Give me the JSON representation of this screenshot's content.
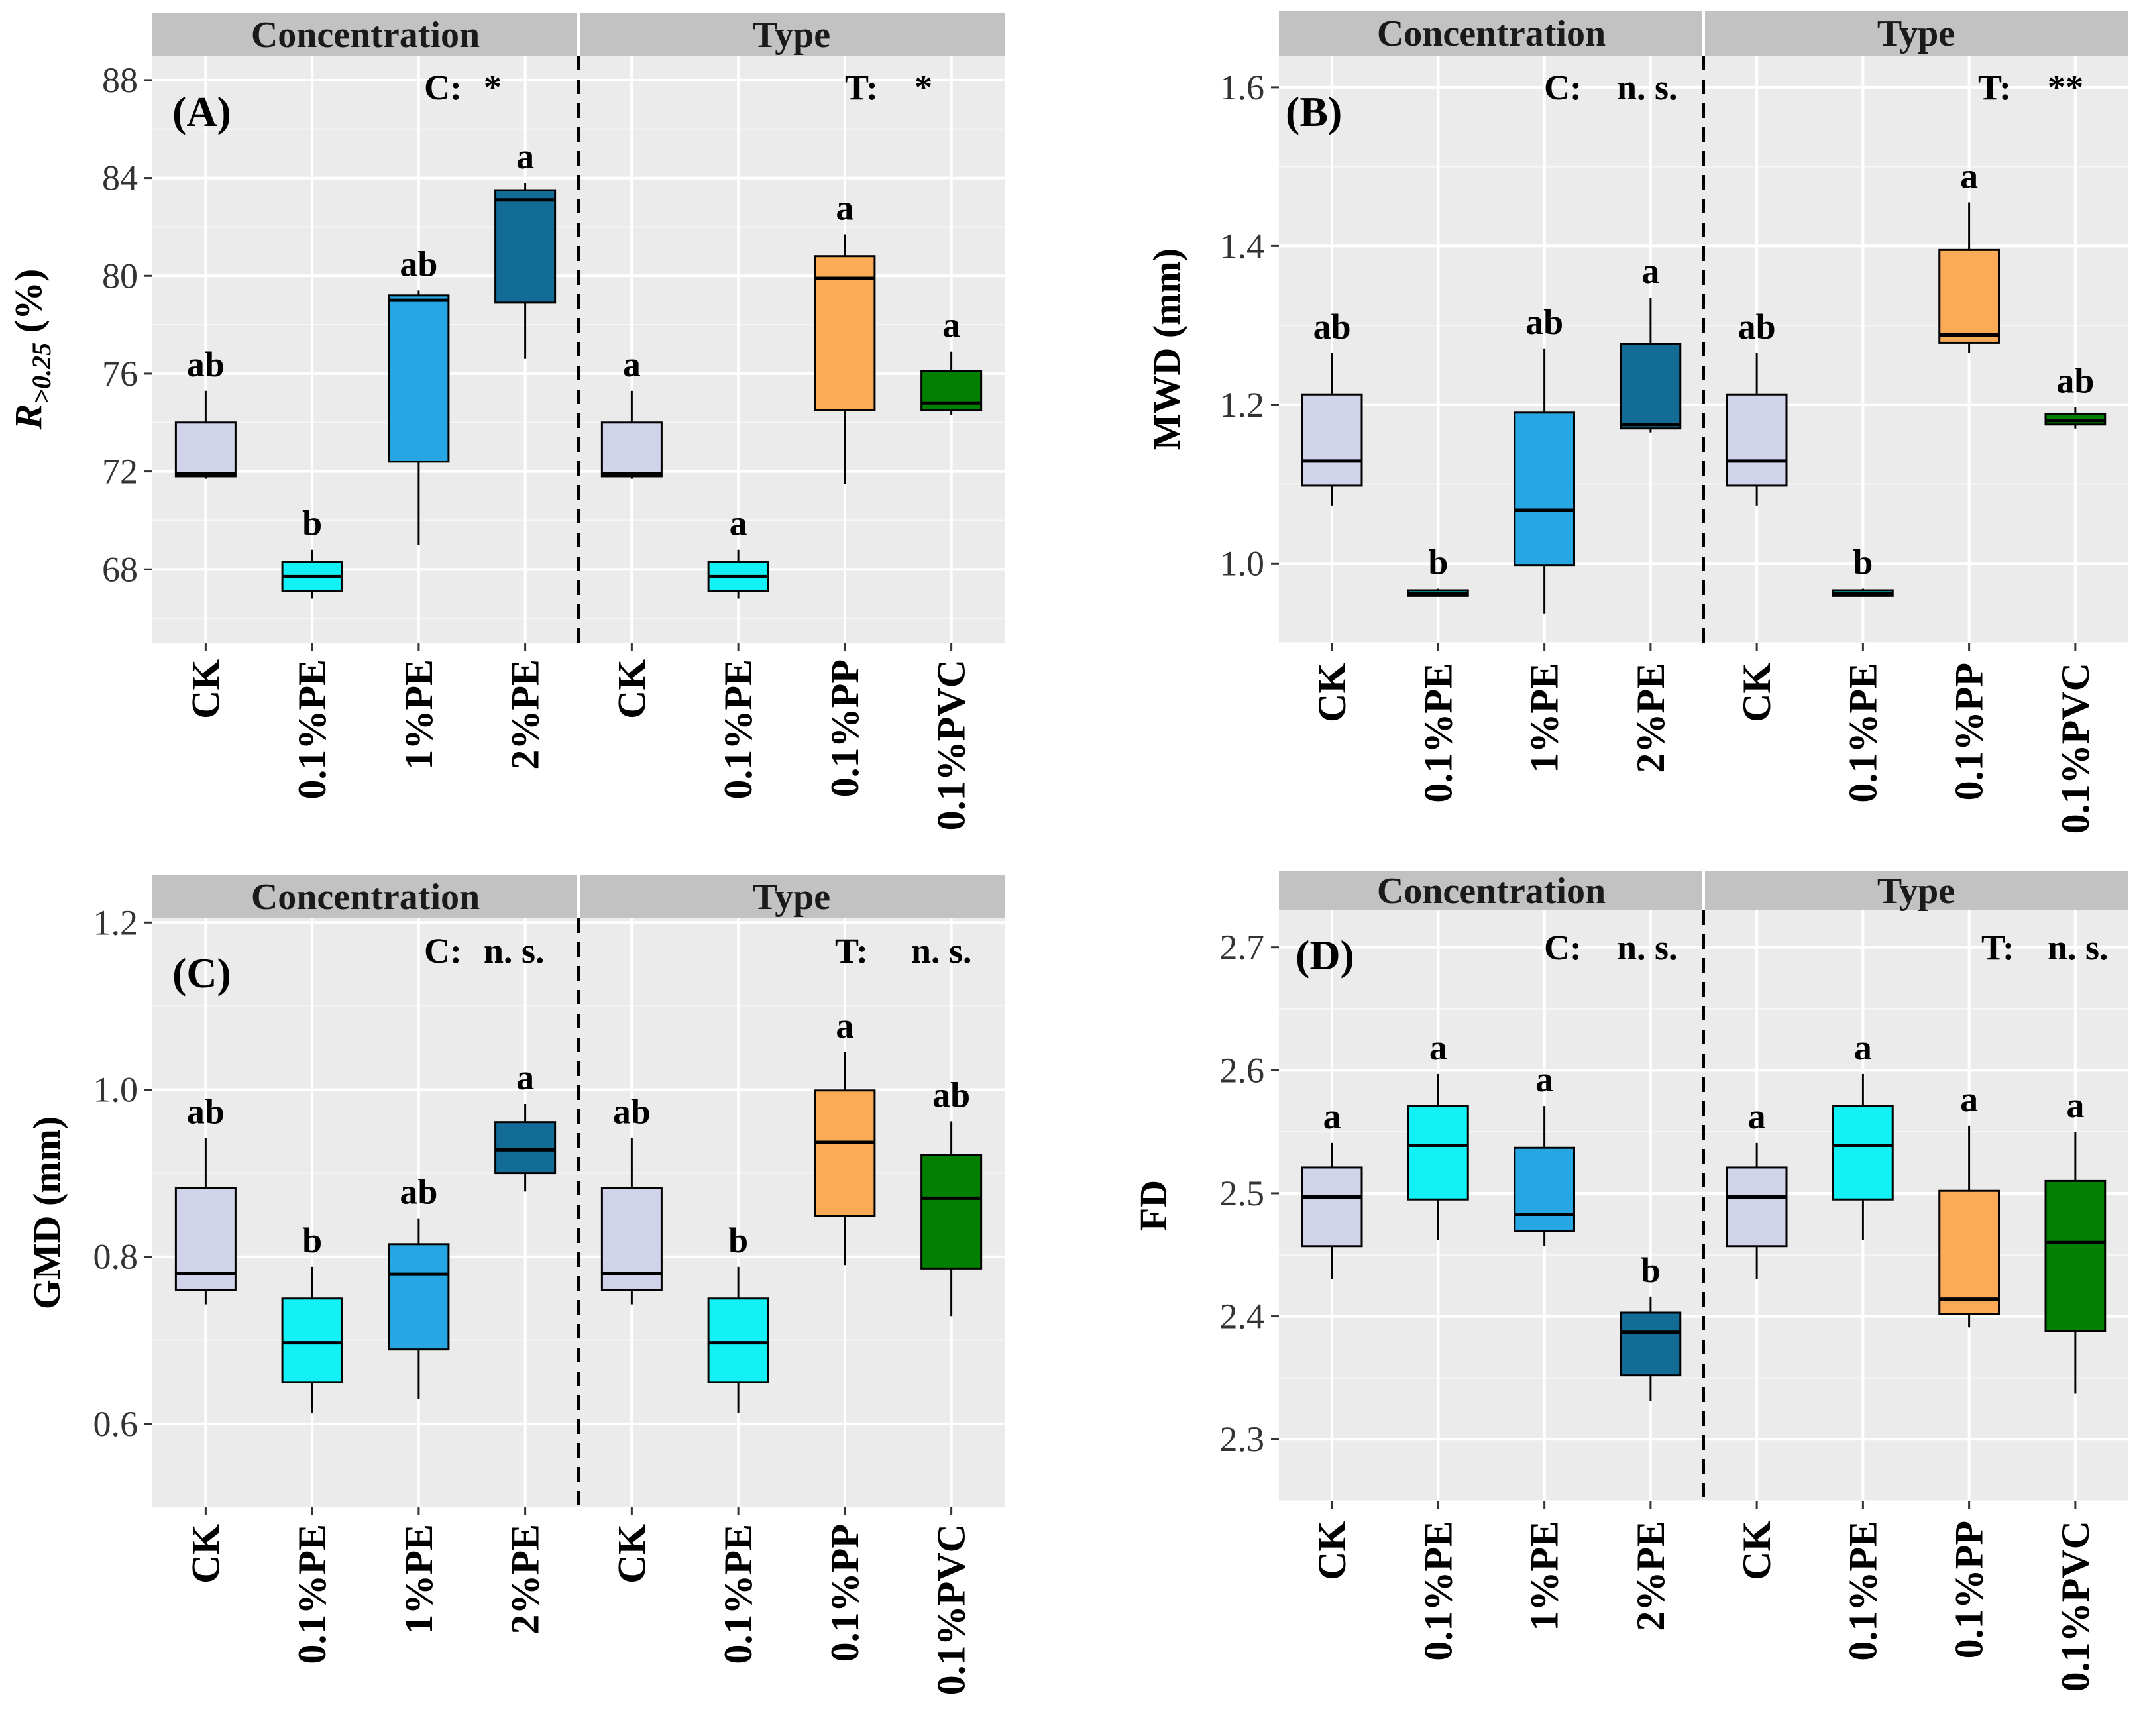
{
  "chart_data": [
    {
      "type": "box",
      "panel_label": "(A)",
      "ylabel_main": "R",
      "ylabel_sub": ">0.25",
      "ylabel_unit": " (%)",
      "ylim": [
        65,
        89
      ],
      "yticks": [
        "68",
        "72",
        "76",
        "80",
        "84",
        "88"
      ],
      "yticks_values": [
        68,
        72,
        76,
        80,
        84,
        88
      ],
      "facets": [
        {
          "name": "Concentration",
          "sig_label": "C:",
          "sig_value": "*"
        },
        {
          "name": "Type",
          "sig_label": "T:",
          "sig_value": "*"
        }
      ],
      "boxes": [
        {
          "facet": 0,
          "category": "CK",
          "color": "#d0d3ea",
          "min": 71.7,
          "q1": 71.8,
          "median": 71.9,
          "q3": 74.0,
          "max": 75.3,
          "letter": "ab"
        },
        {
          "facet": 0,
          "category": "0.1%PE",
          "color": "#12f2f6",
          "min": 66.8,
          "q1": 67.1,
          "median": 67.7,
          "q3": 68.3,
          "max": 68.8,
          "letter": "b"
        },
        {
          "facet": 0,
          "category": "1%PE",
          "color": "#26a6e2",
          "min": 69.0,
          "q1": 72.4,
          "median": 79.0,
          "q3": 79.2,
          "max": 79.4,
          "letter": "ab"
        },
        {
          "facet": 0,
          "category": "2%PE",
          "color": "#136c96",
          "min": 76.6,
          "q1": 78.9,
          "median": 83.1,
          "q3": 83.5,
          "max": 83.8,
          "letter": "a"
        },
        {
          "facet": 1,
          "category": "CK",
          "color": "#d0d3ea",
          "min": 71.7,
          "q1": 71.8,
          "median": 71.9,
          "q3": 74.0,
          "max": 75.3,
          "letter": "a"
        },
        {
          "facet": 1,
          "category": "0.1%PE",
          "color": "#12f2f6",
          "min": 66.8,
          "q1": 67.1,
          "median": 67.7,
          "q3": 68.3,
          "max": 68.8,
          "letter": "a"
        },
        {
          "facet": 1,
          "category": "0.1%PP",
          "color": "#fbab55",
          "min": 71.5,
          "q1": 74.5,
          "median": 79.9,
          "q3": 80.8,
          "max": 81.7,
          "letter": "a"
        },
        {
          "facet": 1,
          "category": "0.1%PVC",
          "color": "#007f00",
          "min": 74.3,
          "q1": 74.5,
          "median": 74.8,
          "q3": 76.1,
          "max": 76.9,
          "letter": "a"
        }
      ]
    },
    {
      "type": "box",
      "panel_label": "(B)",
      "ylabel_main": "MWD (mm)",
      "ylim": [
        0.9,
        1.64
      ],
      "yticks": [
        "1.0",
        "1.2",
        "1.4",
        "1.6"
      ],
      "yticks_values": [
        1.0,
        1.2,
        1.4,
        1.6
      ],
      "facets": [
        {
          "name": "Concentration",
          "sig_label": "C:",
          "sig_value": "n. s."
        },
        {
          "name": "Type",
          "sig_label": "T:",
          "sig_value": "**"
        }
      ],
      "boxes": [
        {
          "facet": 0,
          "category": "CK",
          "color": "#d0d3ea",
          "min": 1.073,
          "q1": 1.098,
          "median": 1.129,
          "q3": 1.213,
          "max": 1.265,
          "letter": "ab"
        },
        {
          "facet": 0,
          "category": "0.1%PE",
          "color": "#12f2f6",
          "min": 0.958,
          "q1": 0.959,
          "median": 0.962,
          "q3": 0.966,
          "max": 0.968,
          "letter": "b"
        },
        {
          "facet": 0,
          "category": "1%PE",
          "color": "#26a6e2",
          "min": 0.937,
          "q1": 0.998,
          "median": 1.067,
          "q3": 1.19,
          "max": 1.271,
          "letter": "ab"
        },
        {
          "facet": 0,
          "category": "2%PE",
          "color": "#136c96",
          "min": 1.165,
          "q1": 1.17,
          "median": 1.175,
          "q3": 1.277,
          "max": 1.335,
          "letter": "a"
        },
        {
          "facet": 1,
          "category": "CK",
          "color": "#d0d3ea",
          "min": 1.073,
          "q1": 1.098,
          "median": 1.129,
          "q3": 1.213,
          "max": 1.265,
          "letter": "ab"
        },
        {
          "facet": 1,
          "category": "0.1%PE",
          "color": "#12f2f6",
          "min": 0.958,
          "q1": 0.959,
          "median": 0.962,
          "q3": 0.966,
          "max": 0.968,
          "letter": "b"
        },
        {
          "facet": 1,
          "category": "0.1%PP",
          "color": "#fbab55",
          "min": 1.265,
          "q1": 1.278,
          "median": 1.288,
          "q3": 1.395,
          "max": 1.455,
          "letter": "a"
        },
        {
          "facet": 1,
          "category": "0.1%PVC",
          "color": "#007f00",
          "min": 1.17,
          "q1": 1.175,
          "median": 1.18,
          "q3": 1.188,
          "max": 1.197,
          "letter": "ab"
        }
      ]
    },
    {
      "type": "box",
      "panel_label": "(C)",
      "ylabel_main": "GMD (mm)",
      "ylim": [
        0.5,
        1.205
      ],
      "yticks": [
        "0.6",
        "0.8",
        "1.0",
        "1.2"
      ],
      "yticks_values": [
        0.6,
        0.8,
        1.0,
        1.2
      ],
      "facets": [
        {
          "name": "Concentration",
          "sig_label": "C:",
          "sig_value": "n. s."
        },
        {
          "name": "Type",
          "sig_label": "T:",
          "sig_value": "n. s."
        }
      ],
      "boxes": [
        {
          "facet": 0,
          "category": "CK",
          "color": "#d0d3ea",
          "min": 0.743,
          "q1": 0.76,
          "median": 0.78,
          "q3": 0.882,
          "max": 0.942,
          "letter": "ab"
        },
        {
          "facet": 0,
          "category": "0.1%PE",
          "color": "#12f2f6",
          "min": 0.613,
          "q1": 0.65,
          "median": 0.697,
          "q3": 0.75,
          "max": 0.788,
          "letter": "b"
        },
        {
          "facet": 0,
          "category": "1%PE",
          "color": "#26a6e2",
          "min": 0.63,
          "q1": 0.689,
          "median": 0.779,
          "q3": 0.815,
          "max": 0.846,
          "letter": "ab"
        },
        {
          "facet": 0,
          "category": "2%PE",
          "color": "#136c96",
          "min": 0.878,
          "q1": 0.9,
          "median": 0.928,
          "q3": 0.961,
          "max": 0.983,
          "letter": "a"
        },
        {
          "facet": 1,
          "category": "CK",
          "color": "#d0d3ea",
          "min": 0.743,
          "q1": 0.76,
          "median": 0.78,
          "q3": 0.882,
          "max": 0.942,
          "letter": "ab"
        },
        {
          "facet": 1,
          "category": "0.1%PE",
          "color": "#12f2f6",
          "min": 0.613,
          "q1": 0.65,
          "median": 0.697,
          "q3": 0.75,
          "max": 0.788,
          "letter": "b"
        },
        {
          "facet": 1,
          "category": "0.1%PP",
          "color": "#fbab55",
          "min": 0.79,
          "q1": 0.849,
          "median": 0.937,
          "q3": 0.999,
          "max": 1.045,
          "letter": "a"
        },
        {
          "facet": 1,
          "category": "0.1%PVC",
          "color": "#007f00",
          "min": 0.729,
          "q1": 0.786,
          "median": 0.87,
          "q3": 0.922,
          "max": 0.962,
          "letter": "ab"
        }
      ]
    },
    {
      "type": "box",
      "panel_label": "(D)",
      "ylabel_main": "FD",
      "ylim": [
        2.25,
        2.73
      ],
      "yticks": [
        "2.3",
        "2.4",
        "2.5",
        "2.6",
        "2.7"
      ],
      "yticks_values": [
        2.3,
        2.4,
        2.5,
        2.6,
        2.7
      ],
      "facets": [
        {
          "name": "Concentration",
          "sig_label": "C:",
          "sig_value": "n. s."
        },
        {
          "name": "Type",
          "sig_label": "T:",
          "sig_value": "n. s."
        }
      ],
      "boxes": [
        {
          "facet": 0,
          "category": "CK",
          "color": "#d0d3ea",
          "min": 2.43,
          "q1": 2.457,
          "median": 2.497,
          "q3": 2.521,
          "max": 2.541,
          "letter": "a"
        },
        {
          "facet": 0,
          "category": "0.1%PE",
          "color": "#12f2f6",
          "min": 2.462,
          "q1": 2.495,
          "median": 2.539,
          "q3": 2.571,
          "max": 2.597,
          "letter": "a"
        },
        {
          "facet": 0,
          "category": "1%PE",
          "color": "#26a6e2",
          "min": 2.457,
          "q1": 2.469,
          "median": 2.483,
          "q3": 2.537,
          "max": 2.571,
          "letter": "a"
        },
        {
          "facet": 0,
          "category": "2%PE",
          "color": "#136c96",
          "min": 2.331,
          "q1": 2.352,
          "median": 2.387,
          "q3": 2.403,
          "max": 2.416,
          "letter": "b"
        },
        {
          "facet": 1,
          "category": "CK",
          "color": "#d0d3ea",
          "min": 2.43,
          "q1": 2.457,
          "median": 2.497,
          "q3": 2.521,
          "max": 2.541,
          "letter": "a"
        },
        {
          "facet": 1,
          "category": "0.1%PE",
          "color": "#12f2f6",
          "min": 2.462,
          "q1": 2.495,
          "median": 2.539,
          "q3": 2.571,
          "max": 2.597,
          "letter": "a"
        },
        {
          "facet": 1,
          "category": "0.1%PP",
          "color": "#fbab55",
          "min": 2.391,
          "q1": 2.402,
          "median": 2.414,
          "q3": 2.502,
          "max": 2.555,
          "letter": "a"
        },
        {
          "facet": 1,
          "category": "0.1%PVC",
          "color": "#007f00",
          "min": 2.337,
          "q1": 2.388,
          "median": 2.46,
          "q3": 2.51,
          "max": 2.55,
          "letter": "a"
        }
      ]
    }
  ]
}
